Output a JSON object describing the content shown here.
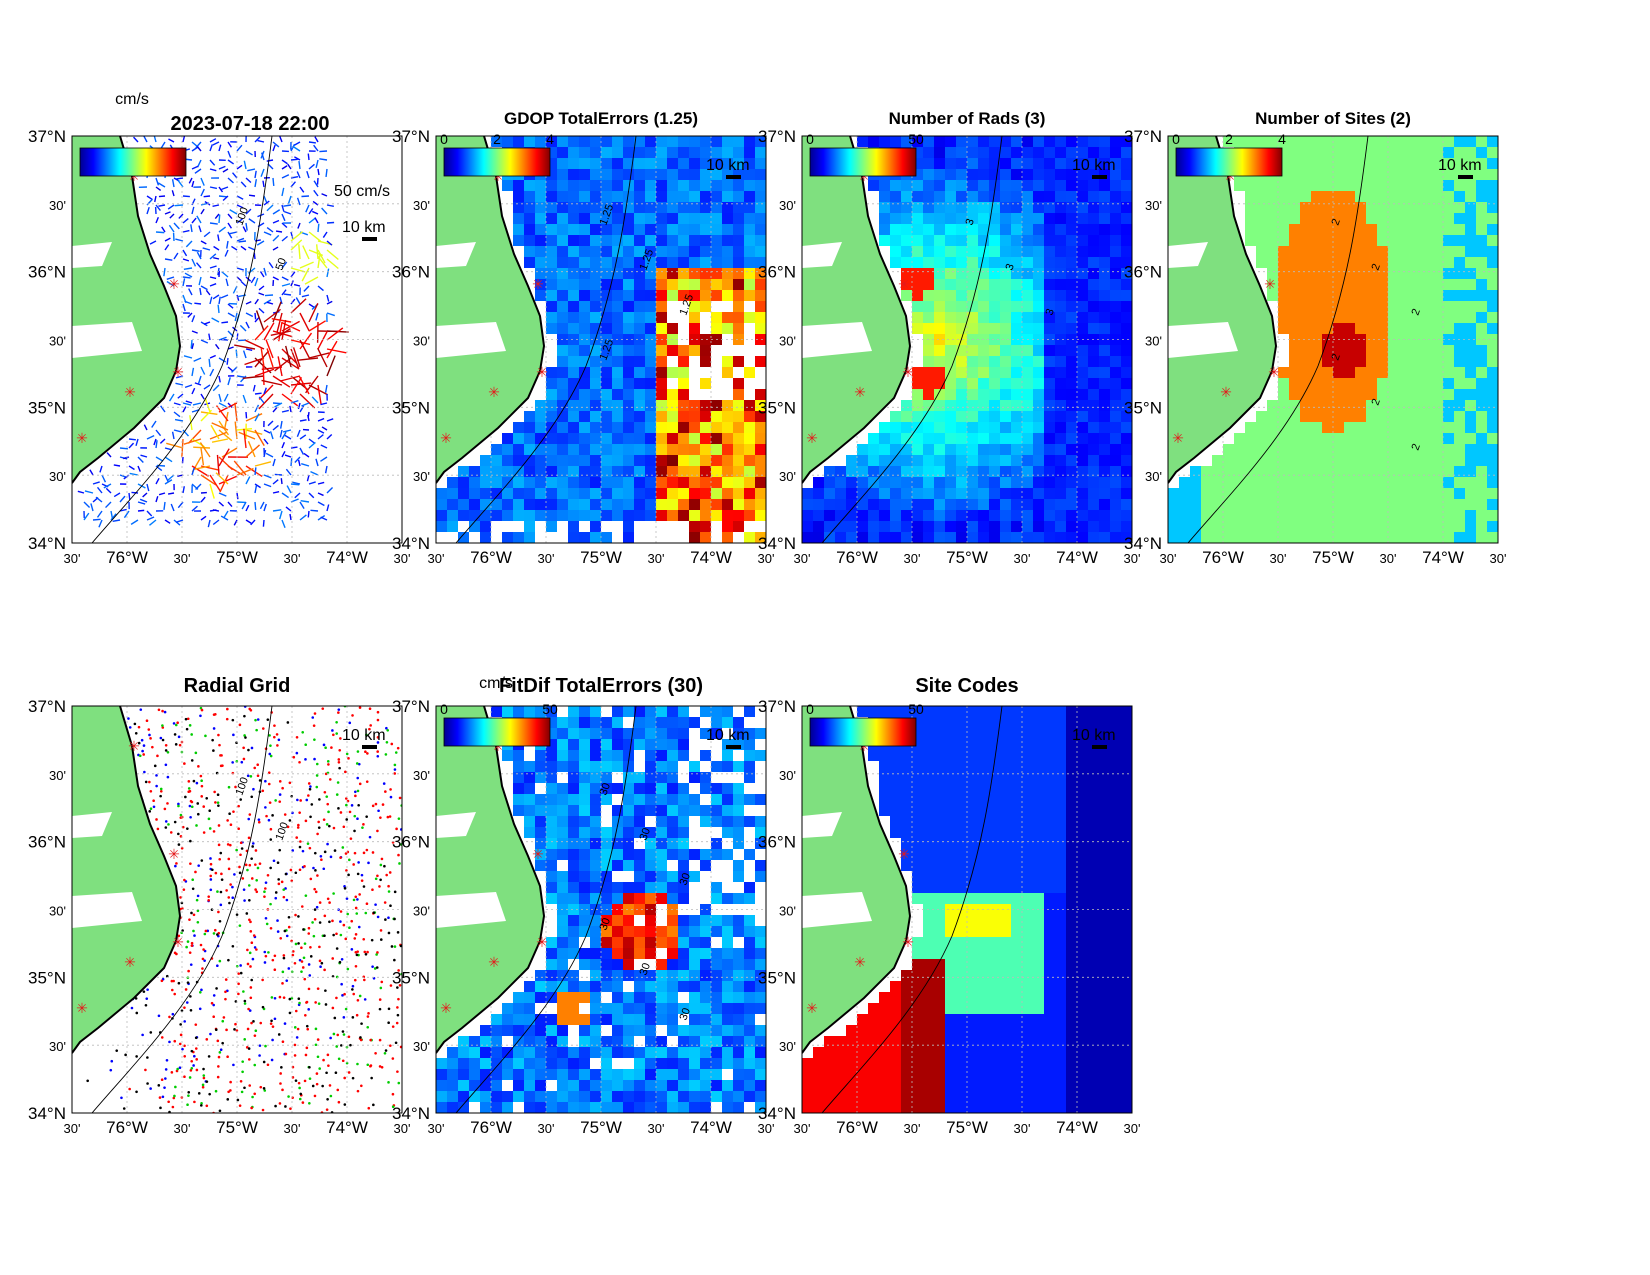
{
  "figure": {
    "top_left_label": "2023-07-18 22:00",
    "panels": [
      {
        "id": "currents",
        "title": "",
        "colorbar_unit": "cm/s",
        "colorbar_ticks": [],
        "scale_vector_label": "50 cm/s",
        "scale_bar_label": "10 km",
        "contour_labels": [
          "100",
          "50"
        ],
        "field": "vectors"
      },
      {
        "id": "gdop",
        "title": "GDOP TotalErrors (1.25)",
        "colorbar_unit": "",
        "colorbar_ticks": [
          "0",
          "2",
          "4"
        ],
        "scale_bar_label": "10 km",
        "contour_labels": [
          "1.25",
          "1.25",
          "1.25",
          "1.25"
        ],
        "field": "gdop"
      },
      {
        "id": "rads",
        "title": "Number of Rads (3)",
        "colorbar_unit": "",
        "colorbar_ticks": [
          "0",
          "50"
        ],
        "scale_bar_label": "10 km",
        "contour_labels": [
          "3",
          "3",
          "3"
        ],
        "field": "rads"
      },
      {
        "id": "sites",
        "title": "Number of Sites (2)",
        "colorbar_unit": "",
        "colorbar_ticks": [
          "0",
          "2",
          "4"
        ],
        "scale_bar_label": "10 km",
        "contour_labels": [
          "2",
          "2",
          "2",
          "2",
          "2",
          "2"
        ],
        "field": "sites"
      },
      {
        "id": "radial-grid",
        "title": "Radial Grid",
        "colorbar_unit": "",
        "colorbar_ticks": [],
        "scale_bar_label": "10 km",
        "contour_labels": [
          "100",
          "100"
        ],
        "field": "radial"
      },
      {
        "id": "fitdif",
        "title": "FitDif TotalErrors (30)",
        "colorbar_unit": "cm/s",
        "colorbar_ticks": [
          "0",
          "50"
        ],
        "scale_bar_label": "10 km",
        "contour_labels": [
          "30",
          "30",
          "30",
          "30",
          "30",
          "30"
        ],
        "field": "fitdif"
      },
      {
        "id": "site-codes",
        "title": "Site Codes",
        "colorbar_unit": "",
        "colorbar_ticks": [
          "0",
          "50"
        ],
        "scale_bar_label": "10 km",
        "contour_labels": [],
        "field": "codes"
      }
    ],
    "axes": {
      "lat_ticks": [
        "37°N",
        "30'",
        "36°N",
        "30'",
        "35°N",
        "30'",
        "34°N"
      ],
      "lon_ticks": [
        "30'",
        "76°W",
        "30'",
        "75°W",
        "30'",
        "74°W",
        "30'"
      ]
    },
    "colors": {
      "land": "#7fe07f",
      "coast": "#000000",
      "site_marker": "#e41a1c",
      "radial_sites": [
        "#0000ff",
        "#ff0000",
        "#00cc00",
        "#ff0000",
        "#000000"
      ]
    }
  }
}
